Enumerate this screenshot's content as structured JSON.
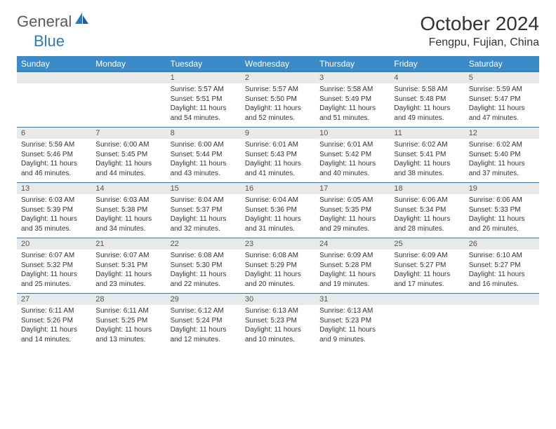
{
  "logo": {
    "text1": "General",
    "text2": "Blue"
  },
  "title": "October 2024",
  "location": "Fengpu, Fujian, China",
  "colors": {
    "header_bg": "#3b8bc9",
    "header_text": "#ffffff",
    "daynum_bg": "#e8e9ea",
    "border": "#2a7ab8",
    "logo_gray": "#5a5a5a",
    "logo_blue": "#2a7ab8"
  },
  "weekdays": [
    "Sunday",
    "Monday",
    "Tuesday",
    "Wednesday",
    "Thursday",
    "Friday",
    "Saturday"
  ],
  "weeks": [
    {
      "nums": [
        "",
        "",
        "1",
        "2",
        "3",
        "4",
        "5"
      ],
      "cells": [
        "",
        "",
        "Sunrise: 5:57 AM\nSunset: 5:51 PM\nDaylight: 11 hours and 54 minutes.",
        "Sunrise: 5:57 AM\nSunset: 5:50 PM\nDaylight: 11 hours and 52 minutes.",
        "Sunrise: 5:58 AM\nSunset: 5:49 PM\nDaylight: 11 hours and 51 minutes.",
        "Sunrise: 5:58 AM\nSunset: 5:48 PM\nDaylight: 11 hours and 49 minutes.",
        "Sunrise: 5:59 AM\nSunset: 5:47 PM\nDaylight: 11 hours and 47 minutes."
      ]
    },
    {
      "nums": [
        "6",
        "7",
        "8",
        "9",
        "10",
        "11",
        "12"
      ],
      "cells": [
        "Sunrise: 5:59 AM\nSunset: 5:46 PM\nDaylight: 11 hours and 46 minutes.",
        "Sunrise: 6:00 AM\nSunset: 5:45 PM\nDaylight: 11 hours and 44 minutes.",
        "Sunrise: 6:00 AM\nSunset: 5:44 PM\nDaylight: 11 hours and 43 minutes.",
        "Sunrise: 6:01 AM\nSunset: 5:43 PM\nDaylight: 11 hours and 41 minutes.",
        "Sunrise: 6:01 AM\nSunset: 5:42 PM\nDaylight: 11 hours and 40 minutes.",
        "Sunrise: 6:02 AM\nSunset: 5:41 PM\nDaylight: 11 hours and 38 minutes.",
        "Sunrise: 6:02 AM\nSunset: 5:40 PM\nDaylight: 11 hours and 37 minutes."
      ]
    },
    {
      "nums": [
        "13",
        "14",
        "15",
        "16",
        "17",
        "18",
        "19"
      ],
      "cells": [
        "Sunrise: 6:03 AM\nSunset: 5:39 PM\nDaylight: 11 hours and 35 minutes.",
        "Sunrise: 6:03 AM\nSunset: 5:38 PM\nDaylight: 11 hours and 34 minutes.",
        "Sunrise: 6:04 AM\nSunset: 5:37 PM\nDaylight: 11 hours and 32 minutes.",
        "Sunrise: 6:04 AM\nSunset: 5:36 PM\nDaylight: 11 hours and 31 minutes.",
        "Sunrise: 6:05 AM\nSunset: 5:35 PM\nDaylight: 11 hours and 29 minutes.",
        "Sunrise: 6:06 AM\nSunset: 5:34 PM\nDaylight: 11 hours and 28 minutes.",
        "Sunrise: 6:06 AM\nSunset: 5:33 PM\nDaylight: 11 hours and 26 minutes."
      ]
    },
    {
      "nums": [
        "20",
        "21",
        "22",
        "23",
        "24",
        "25",
        "26"
      ],
      "cells": [
        "Sunrise: 6:07 AM\nSunset: 5:32 PM\nDaylight: 11 hours and 25 minutes.",
        "Sunrise: 6:07 AM\nSunset: 5:31 PM\nDaylight: 11 hours and 23 minutes.",
        "Sunrise: 6:08 AM\nSunset: 5:30 PM\nDaylight: 11 hours and 22 minutes.",
        "Sunrise: 6:08 AM\nSunset: 5:29 PM\nDaylight: 11 hours and 20 minutes.",
        "Sunrise: 6:09 AM\nSunset: 5:28 PM\nDaylight: 11 hours and 19 minutes.",
        "Sunrise: 6:09 AM\nSunset: 5:27 PM\nDaylight: 11 hours and 17 minutes.",
        "Sunrise: 6:10 AM\nSunset: 5:27 PM\nDaylight: 11 hours and 16 minutes."
      ]
    },
    {
      "nums": [
        "27",
        "28",
        "29",
        "30",
        "31",
        "",
        ""
      ],
      "cells": [
        "Sunrise: 6:11 AM\nSunset: 5:26 PM\nDaylight: 11 hours and 14 minutes.",
        "Sunrise: 6:11 AM\nSunset: 5:25 PM\nDaylight: 11 hours and 13 minutes.",
        "Sunrise: 6:12 AM\nSunset: 5:24 PM\nDaylight: 11 hours and 12 minutes.",
        "Sunrise: 6:13 AM\nSunset: 5:23 PM\nDaylight: 11 hours and 10 minutes.",
        "Sunrise: 6:13 AM\nSunset: 5:23 PM\nDaylight: 11 hours and 9 minutes.",
        "",
        ""
      ]
    }
  ]
}
